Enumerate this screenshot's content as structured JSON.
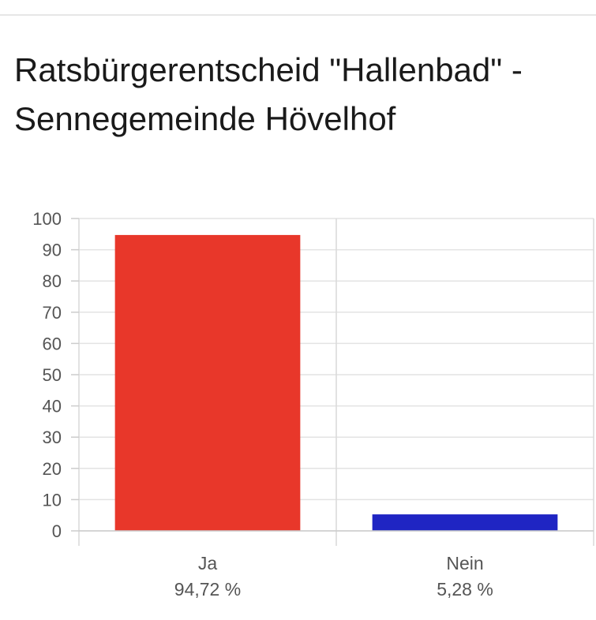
{
  "page": {
    "title": "Ratsbürgerentscheid \"Hallenbad\" - Sennegemeinde Hövelhof"
  },
  "chart_data": {
    "type": "bar",
    "title": "Ratsbürgerentscheid \"Hallenbad\" - Sennegemeinde Hövelhof",
    "xlabel": "",
    "ylabel": "",
    "ylim": [
      0,
      100
    ],
    "yticks": [
      "0",
      "10",
      "20",
      "30",
      "40",
      "50",
      "60",
      "70",
      "80",
      "90",
      "100"
    ],
    "grid": true,
    "categories": [
      "Ja",
      "Nein"
    ],
    "values": [
      94.72,
      5.28
    ],
    "value_labels": [
      "94,72 %",
      "5,28 %"
    ],
    "colors": [
      "#e8372a",
      "#1f25c3"
    ]
  }
}
